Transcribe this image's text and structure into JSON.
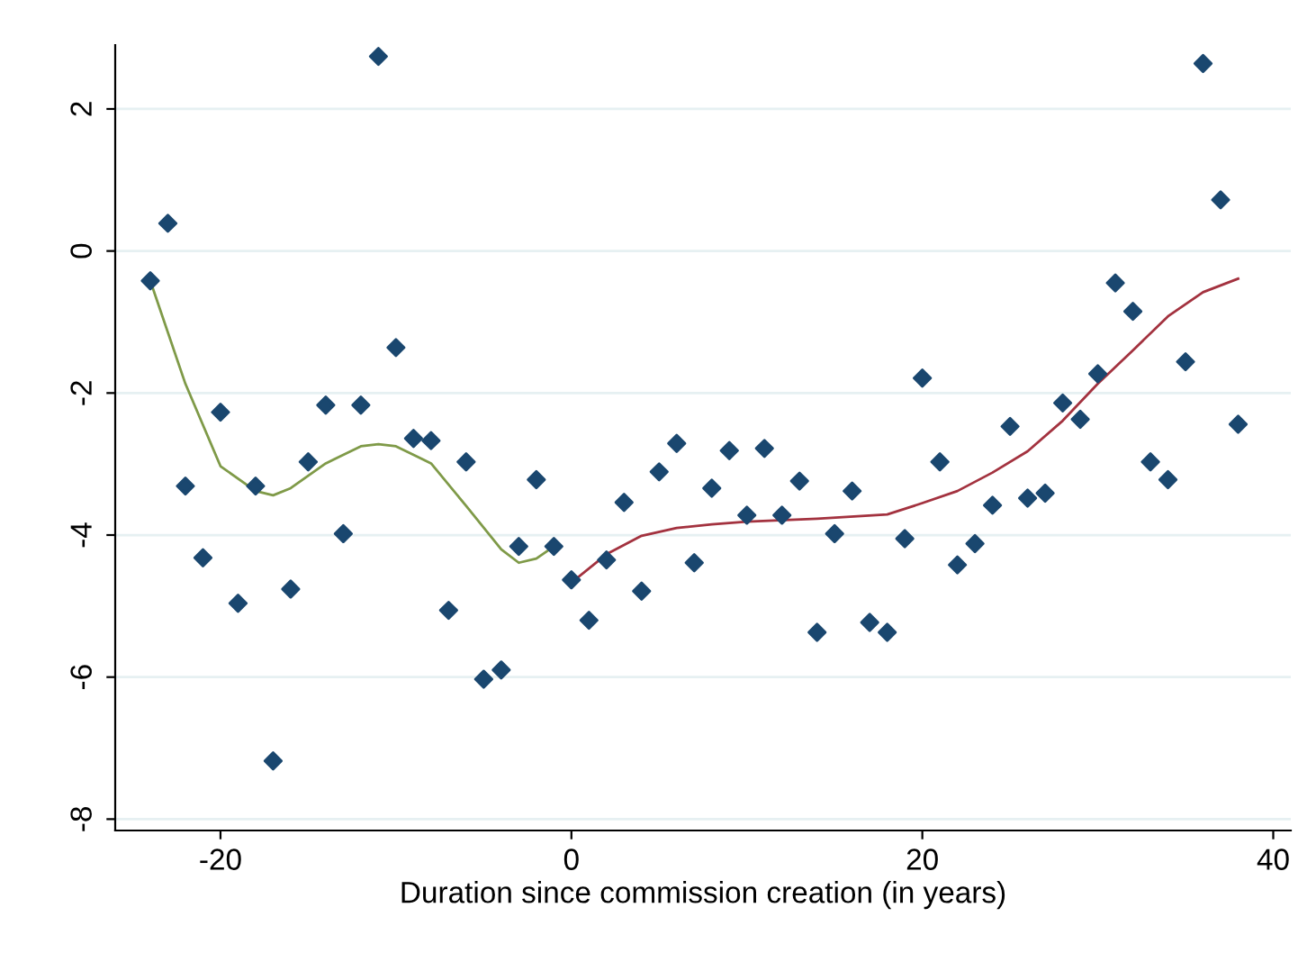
{
  "chart_data": {
    "type": "scatter",
    "xlabel": "Duration since commission creation (in years)",
    "xlim": [
      -26,
      41
    ],
    "ylim": [
      -8.16,
      2.9
    ],
    "xticks": [
      -20,
      0,
      20,
      40
    ],
    "yticks": [
      -8,
      -6,
      -4,
      -2,
      0,
      2
    ],
    "grid": "y",
    "legend": false,
    "series": [
      {
        "marker": "diamond",
        "color": "#1a476f",
        "x": [
          -24,
          -23,
          -22,
          -21,
          -20,
          -19,
          -18,
          -17,
          -16,
          -15,
          -14,
          -13,
          -12,
          -11,
          -10,
          -9,
          -8,
          -7,
          -6,
          -5,
          -4,
          -3,
          -2,
          -1,
          0,
          1,
          2,
          3,
          4,
          5,
          6,
          7,
          8,
          9,
          10,
          11,
          12,
          13,
          14,
          15,
          16,
          17,
          18,
          19,
          20,
          21,
          22,
          23,
          24,
          25,
          26,
          27,
          28,
          29,
          30,
          31,
          32,
          33,
          34,
          35,
          36,
          37,
          38
        ],
        "values": [
          -0.42,
          0.39,
          -3.31,
          -4.32,
          -2.27,
          -4.96,
          -3.31,
          -7.18,
          -4.76,
          -2.97,
          -2.17,
          -3.98,
          -2.17,
          2.74,
          -1.36,
          -2.64,
          -2.67,
          -5.06,
          -2.97,
          -6.03,
          -5.9,
          -4.16,
          -3.22,
          -4.16,
          -4.63,
          -5.2,
          -4.35,
          -3.54,
          -4.79,
          -3.11,
          -2.71,
          -4.39,
          -3.34,
          -2.81,
          -3.72,
          -2.78,
          -3.72,
          -3.24,
          -5.37,
          -3.98,
          -3.38,
          -5.23,
          -5.37,
          -4.05,
          -1.79,
          -2.97,
          -4.42,
          -4.12,
          -3.58,
          -2.47,
          -3.48,
          -3.41,
          -2.14,
          -2.37,
          -1.73,
          -0.45,
          -0.85,
          -2.97,
          -3.22,
          -1.56,
          2.64,
          0.72,
          -2.44
        ]
      },
      {
        "type": "line",
        "marker": "none",
        "line_style": "solid",
        "color": "#7f9a48",
        "x": [
          -24,
          -22,
          -20,
          -18,
          -17,
          -16,
          -14,
          -12,
          -11,
          -10,
          -8,
          -6,
          -4,
          -3,
          -2,
          -1
        ],
        "values": [
          -0.42,
          -1.87,
          -3.03,
          -3.38,
          -3.44,
          -3.34,
          -2.99,
          -2.75,
          -2.72,
          -2.75,
          -2.99,
          -3.59,
          -4.2,
          -4.39,
          -4.33,
          -4.16
        ]
      },
      {
        "type": "line",
        "marker": "none",
        "line_style": "solid",
        "color": "#a3323f",
        "x": [
          0,
          2,
          4,
          6,
          8,
          10,
          14,
          18,
          20,
          22,
          24,
          26,
          28,
          30,
          32,
          34,
          36,
          38
        ],
        "values": [
          -4.67,
          -4.27,
          -4.01,
          -3.9,
          -3.85,
          -3.81,
          -3.77,
          -3.71,
          -3.55,
          -3.38,
          -3.12,
          -2.82,
          -2.39,
          -1.87,
          -1.4,
          -0.92,
          -0.58,
          -0.39
        ]
      }
    ]
  }
}
